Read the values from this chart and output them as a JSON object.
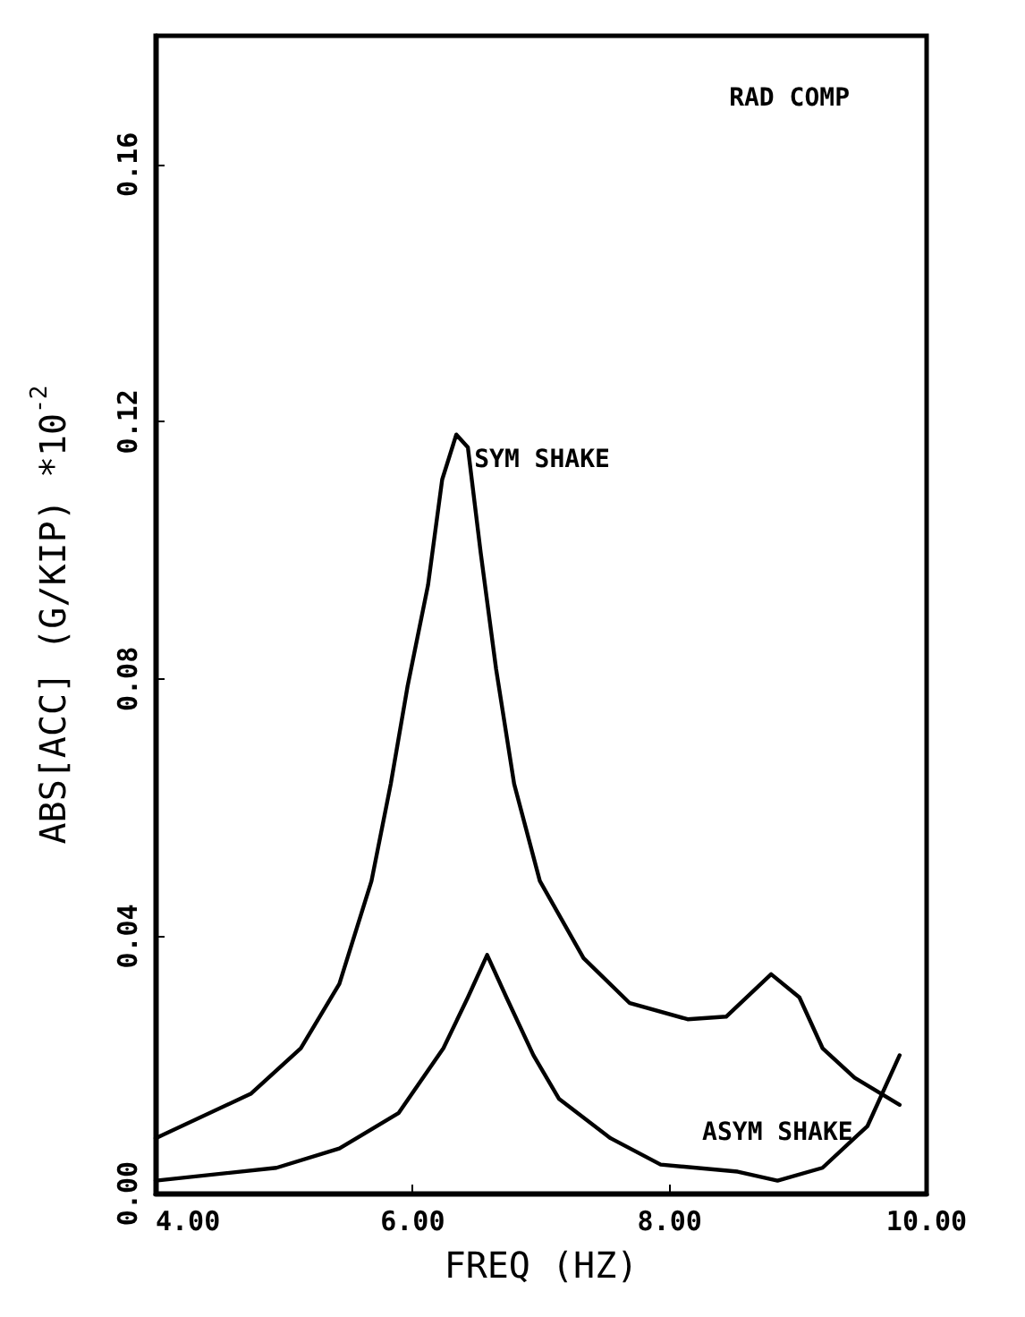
{
  "chart_data": {
    "type": "line",
    "xlabel": "FREQ (HZ)",
    "ylabel": "ABS[ACC] (G/KIP) *10$^{-2}$",
    "xlim": [
      4,
      10
    ],
    "xticks": [
      {
        "value": 4,
        "label": "4.00"
      },
      {
        "value": 6,
        "label": "6.00"
      },
      {
        "value": 8,
        "label": "8.00"
      },
      {
        "value": 10,
        "label": "10.00"
      }
    ],
    "ylim": [
      0,
      0.18
    ],
    "yticks": [
      {
        "value": 0,
        "label": "0.00"
      },
      {
        "value": 0.04,
        "label": "0.04"
      },
      {
        "value": 0.08,
        "label": "0.08"
      },
      {
        "value": 0.12,
        "label": "0.12"
      },
      {
        "value": 0.16,
        "label": "0.16"
      }
    ],
    "grid": false,
    "marker": "none",
    "line_style": "solid",
    "series": [
      {
        "name": "SYM SHAKE",
        "color": "#000000",
        "x": [
          4.0,
          4.74,
          5.13,
          5.43,
          5.68,
          5.83,
          5.96,
          6.12,
          6.23,
          6.34,
          6.43,
          6.53,
          6.65,
          6.79,
          6.99,
          7.33,
          7.69,
          8.14,
          8.44,
          8.79,
          9.01,
          9.19,
          9.44,
          9.79
        ],
        "values": [
          0.0086,
          0.0155,
          0.0226,
          0.0326,
          0.0486,
          0.0637,
          0.0788,
          0.0946,
          0.111,
          0.118,
          0.116,
          0.0996,
          0.0815,
          0.0637,
          0.0486,
          0.0366,
          0.0296,
          0.0271,
          0.0275,
          0.0341,
          0.0305,
          0.0226,
          0.018,
          0.0138
        ]
      },
      {
        "name": "ASYM SHAKE",
        "color": "#000000",
        "x": [
          4.0,
          4.94,
          5.43,
          5.89,
          6.24,
          6.43,
          6.58,
          6.73,
          6.94,
          7.14,
          7.54,
          7.93,
          8.53,
          8.84,
          9.19,
          9.54,
          9.79
        ],
        "values": [
          0.002,
          0.004,
          0.007,
          0.0125,
          0.0226,
          0.0305,
          0.0371,
          0.0305,
          0.0215,
          0.0147,
          0.0086,
          0.0045,
          0.0034,
          0.002,
          0.004,
          0.0105,
          0.0215
        ]
      }
    ],
    "annotations": [
      "RAD COMP"
    ]
  }
}
